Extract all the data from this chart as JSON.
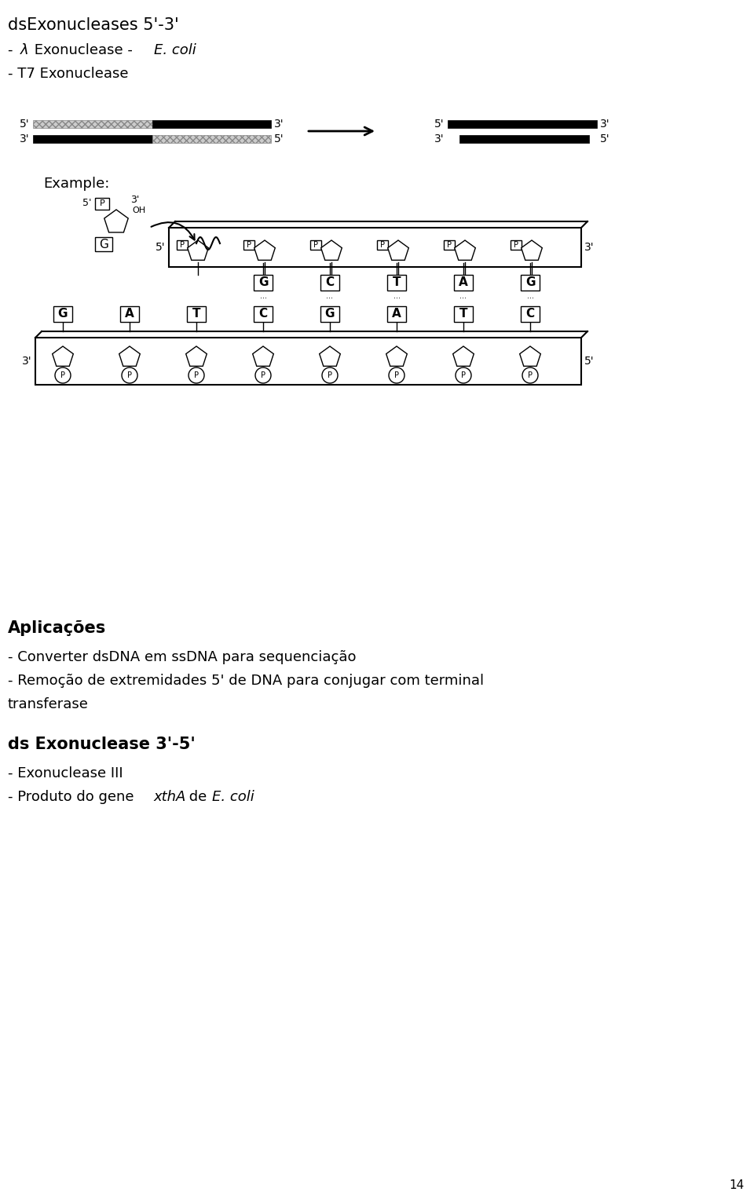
{
  "bg_color": "#ffffff",
  "title_line": "dsExonucleases 5'-3'",
  "line2": "- T7 Exonuclease",
  "example_label": "Example:",
  "aplicacoes_title": "Aplicações",
  "app_line1": "- Converter dsDNA em ssDNA para sequenciação",
  "app_line2": "- Remoção de extremidades 5' de DNA para conjugar com terminal",
  "app_line2b": "transferase",
  "ds_exo_35": "ds Exonuclease 3'-5'",
  "exo3": "- Exonuclease III",
  "page_num": "14",
  "font_size_title": 15,
  "font_size_body": 13,
  "font_size_label": 10,
  "font_size_small": 9
}
